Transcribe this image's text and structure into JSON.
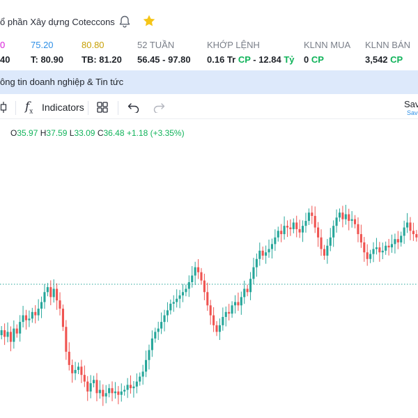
{
  "header": {
    "company_name": "ổ phần Xây dựng Coteccons",
    "bell_icon": "bell-icon",
    "star_icon": "star-icon",
    "star_color": "#f5c518"
  },
  "stats": [
    {
      "id": "ceiling",
      "label": "0",
      "value": "40",
      "label_color": "#d81bd8"
    },
    {
      "id": "floor",
      "label": "75.20",
      "value": "T: 80.90",
      "label_color": "#2e8fe6"
    },
    {
      "id": "ref",
      "label": "80.80",
      "value": "TB: 81.20",
      "label_color": "#c7a006"
    },
    {
      "id": "week52",
      "label": "52 TUẦN",
      "value": "56.45 - 97.80"
    },
    {
      "id": "matched",
      "label": "KHỚP LỆNH",
      "value_parts": [
        "0.16 Tr ",
        "CP",
        " - 12.84 ",
        "Tỷ"
      ]
    },
    {
      "id": "foreign_buy",
      "label": "KLNN MUA",
      "value_parts": [
        "0 ",
        "CP"
      ]
    },
    {
      "id": "foreign_sell",
      "label": "KLNN BÁN",
      "value_parts": [
        "3,542 ",
        "CP"
      ]
    }
  ],
  "tabbar": {
    "active_tab": "ông tin doanh nghiệp & Tin tức"
  },
  "toolbar": {
    "indicators_label": "Indicators",
    "save_label": "Sav",
    "save_sub_label": "Save"
  },
  "ohlc": {
    "o_label": "O",
    "o_value": "35.97",
    "h_label": "H",
    "h_value": "37.59",
    "l_label": "L",
    "l_value": "33.09",
    "c_label": "C",
    "c_value": "36.48",
    "change": "+1.18 (+3.35%)"
  },
  "colors": {
    "up": "#26a69a",
    "down": "#ef5350",
    "accent": "#2e8fe6",
    "tab_bg": "#dde9fb"
  },
  "chart_data": {
    "type": "candlestick",
    "title": "",
    "reference_line_dashed": true,
    "series": [
      {
        "name": "",
        "close_trend": [
          33.3,
          32.9,
          33.2,
          32.6,
          33.4,
          33.1,
          33.8,
          34.2,
          33.9,
          34.0,
          34.4,
          34.2,
          34.6,
          35.0,
          35.6,
          35.9,
          35.3,
          35.8,
          35.1,
          34.6,
          33.5,
          32.0,
          31.2,
          30.7,
          30.9,
          31.1,
          30.6,
          30.2,
          29.6,
          30.1,
          30.3,
          29.5,
          29.7,
          29.3,
          29.5,
          29.8,
          29.5,
          29.6,
          29.4,
          29.6,
          29.7,
          30.0,
          29.8,
          29.9,
          30.2,
          30.5,
          30.8,
          31.5,
          32.1,
          32.8,
          33.2,
          33.4,
          33.8,
          34.2,
          34.5,
          34.9,
          35.0,
          35.2,
          35.4,
          35.6,
          35.8,
          36.2,
          36.6,
          37.1,
          36.8,
          36.3,
          35.6,
          34.8,
          34.2,
          33.6,
          33.2,
          33.6,
          34.1,
          34.4,
          34.3,
          34.8,
          35.0,
          34.8,
          35.3,
          35.8,
          35.6,
          36.4,
          37.1,
          37.6,
          38.1,
          37.8,
          38.0,
          38.2,
          38.5,
          38.9,
          39.3,
          39.1,
          39.6,
          39.5,
          39.4,
          39.8,
          39.4,
          39.2,
          39.6,
          39.9,
          40.4,
          40.2,
          39.5,
          38.9,
          38.2,
          37.8,
          38.4,
          38.9,
          39.6,
          40.1,
          40.4,
          40.0,
          40.3,
          39.9,
          40.0,
          39.7,
          39.1,
          38.6,
          38.0,
          37.6,
          37.9,
          38.2,
          38.3,
          38.0,
          38.1,
          38.4,
          38.3,
          38.5,
          38.8,
          38.6,
          39.0,
          39.5,
          39.8,
          39.3,
          39.1,
          38.9
        ]
      }
    ]
  }
}
